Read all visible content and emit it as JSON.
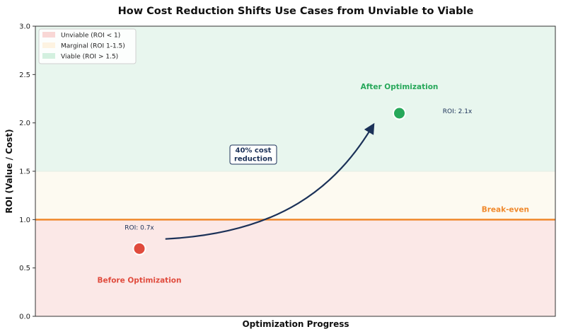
{
  "chart_data": {
    "type": "scatter",
    "title": "How Cost Reduction Shifts Use Cases from Unviable to Viable",
    "xlabel": "Optimization Progress",
    "ylabel": "ROI (Value / Cost)",
    "xlim": [
      0,
      10
    ],
    "ylim": [
      0,
      3.0
    ],
    "yticks": [
      "0.0",
      "0.5",
      "1.0",
      "1.5",
      "2.0",
      "2.5",
      "3.0"
    ],
    "ytick_values": [
      0,
      0.5,
      1.0,
      1.5,
      2.0,
      2.5,
      3.0
    ],
    "grid": false,
    "legend_position": "top-left",
    "zones": [
      {
        "name": "Unviable (ROI < 1)",
        "from": 0,
        "to": 1.0,
        "color": "#fbe8e7"
      },
      {
        "name": "Marginal (ROI 1-1.5)",
        "from": 1.0,
        "to": 1.5,
        "color": "#fdfaf1"
      },
      {
        "name": "Viable (ROI > 1.5)",
        "from": 1.5,
        "to": 3.0,
        "color": "#e8f6ee"
      }
    ],
    "legend_swatch_colors": [
      "#f8d7d5",
      "#fdf3e1",
      "#d3f0df"
    ],
    "breakeven": {
      "y": 1.0,
      "label": "Break-even",
      "color": "#f0892d"
    },
    "points": [
      {
        "x": 2.0,
        "y": 0.7,
        "label": "Before Optimization",
        "roi_label": "ROI: 0.7x",
        "color": "#e04b3d"
      },
      {
        "x": 7.0,
        "y": 2.1,
        "label": "After Optimization",
        "roi_label": "ROI: 2.1x",
        "color": "#27a85a"
      }
    ],
    "arrow": {
      "from": [
        2.5,
        0.8
      ],
      "to": [
        6.5,
        1.98
      ],
      "color": "#1b3158"
    },
    "annotation": {
      "line1": "40% cost",
      "line2": "reduction",
      "x": 4.2,
      "y": 1.65
    }
  }
}
